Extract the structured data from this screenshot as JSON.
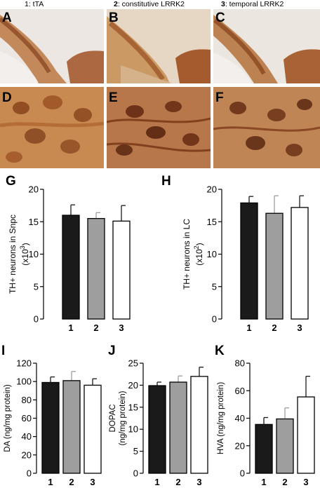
{
  "headers": [
    {
      "num": "1",
      "text": ": tTA",
      "bold": false
    },
    {
      "num": "2",
      "text": ": constitutive LRRK2",
      "bold": true
    },
    {
      "num": "3",
      "text": ": temporal LRRK2",
      "bold": true
    }
  ],
  "micro_labels": [
    "A",
    "B",
    "C",
    "D",
    "E",
    "F"
  ],
  "colors": {
    "bar1": "#1a1a1a",
    "bar2": "#9e9e9e",
    "bar3": "#ffffff",
    "stain_dark": "#8a3a10",
    "stain_light": "#d9b48a"
  },
  "chart_data": [
    {
      "id": "G",
      "type": "bar",
      "categories": [
        "1",
        "2",
        "3"
      ],
      "values": [
        16.0,
        15.5,
        15.1
      ],
      "errors": [
        1.6,
        0.9,
        2.4
      ],
      "ylabel": "TH+ neurons in Snpc",
      "unit_pre": "(x10",
      "unit_exp": "3",
      "unit_post": ")",
      "ylim": [
        0,
        20
      ],
      "yticks": [
        0,
        5,
        10,
        15,
        20
      ]
    },
    {
      "id": "H",
      "type": "bar",
      "categories": [
        "1",
        "2",
        "3"
      ],
      "values": [
        17.9,
        16.3,
        17.2
      ],
      "errors": [
        1.0,
        2.7,
        1.8
      ],
      "ylabel": "TH+ neurons in LC",
      "unit_pre": "(x10",
      "unit_exp": "2",
      "unit_post": ")",
      "ylim": [
        0,
        20
      ],
      "yticks": [
        0,
        5,
        10,
        15,
        20
      ]
    },
    {
      "id": "I",
      "type": "bar",
      "categories": [
        "1",
        "2",
        "3"
      ],
      "values": [
        99,
        101,
        96
      ],
      "errors": [
        6,
        10,
        7
      ],
      "ylabel": "DA (ng/mg protein)",
      "ylim": [
        0,
        120
      ],
      "yticks": [
        0,
        20,
        40,
        60,
        80,
        100,
        120
      ]
    },
    {
      "id": "J",
      "type": "bar",
      "categories": [
        "1",
        "2",
        "3"
      ],
      "values": [
        19.9,
        20.7,
        22.0
      ],
      "errors": [
        0.8,
        1.4,
        2.1
      ],
      "ylabel": "DOPAC",
      "ylabel2": "(ng/mg protein)",
      "ylim": [
        0,
        25
      ],
      "yticks": [
        0,
        5,
        10,
        15,
        20,
        25
      ]
    },
    {
      "id": "K",
      "type": "bar",
      "categories": [
        "1",
        "2",
        "3"
      ],
      "values": [
        35.5,
        39.5,
        55.5
      ],
      "errors": [
        5.0,
        8.0,
        15.0
      ],
      "ylabel": "HVA (ng/mg protein)",
      "ylim": [
        0,
        80
      ],
      "yticks": [
        0,
        20,
        40,
        60,
        80
      ]
    }
  ]
}
